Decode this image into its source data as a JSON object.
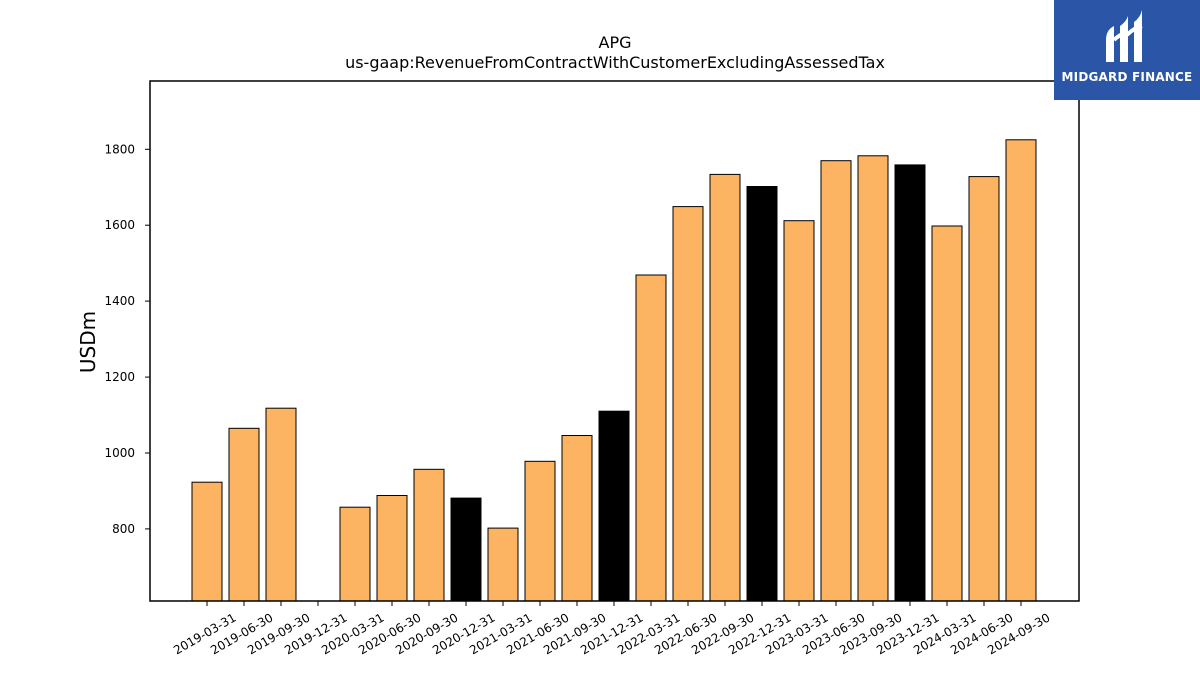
{
  "logo": {
    "text": "MIDGARD FINANCE",
    "icon": "midgard-m-logo-icon",
    "background": "#2b55a6"
  },
  "colors": {
    "reported": "#fdb462",
    "derived": "#000000",
    "edge": "#000000",
    "axis": "#000000"
  },
  "chart_data": {
    "type": "bar",
    "title": "APG",
    "subtitle": "us-gaap:RevenueFromContractWithCustomerExcludingAssessedTax",
    "xlabel": "",
    "ylabel": "USDm",
    "ylim": [
      610,
      1980
    ],
    "yticks": [
      800,
      1000,
      1200,
      1400,
      1600,
      1800
    ],
    "grid": false,
    "categories": [
      "2019-03-31",
      "2019-06-30",
      "2019-09-30",
      "2019-12-31",
      "2020-03-31",
      "2020-06-30",
      "2020-09-30",
      "2020-12-31",
      "2021-03-31",
      "2021-06-30",
      "2021-09-30",
      "2021-12-31",
      "2022-03-31",
      "2022-06-30",
      "2022-09-30",
      "2022-12-31",
      "2023-03-31",
      "2023-06-30",
      "2023-09-30",
      "2023-12-31",
      "2024-03-31",
      "2024-06-30",
      "2024-09-30"
    ],
    "values": [
      923,
      1065,
      1118,
      null,
      857,
      888,
      957,
      881,
      802,
      978,
      1046,
      1110,
      1469,
      1649,
      1734,
      1702,
      1612,
      1770,
      1783,
      1759,
      1598,
      1728,
      1825
    ],
    "bar_colors": [
      "#fdb462",
      "#fdb462",
      "#fdb462",
      "#fdb462",
      "#fdb462",
      "#fdb462",
      "#fdb462",
      "#000000",
      "#fdb462",
      "#fdb462",
      "#fdb462",
      "#000000",
      "#fdb462",
      "#fdb462",
      "#fdb462",
      "#000000",
      "#fdb462",
      "#fdb462",
      "#fdb462",
      "#000000",
      "#fdb462",
      "#fdb462",
      "#fdb462"
    ]
  }
}
